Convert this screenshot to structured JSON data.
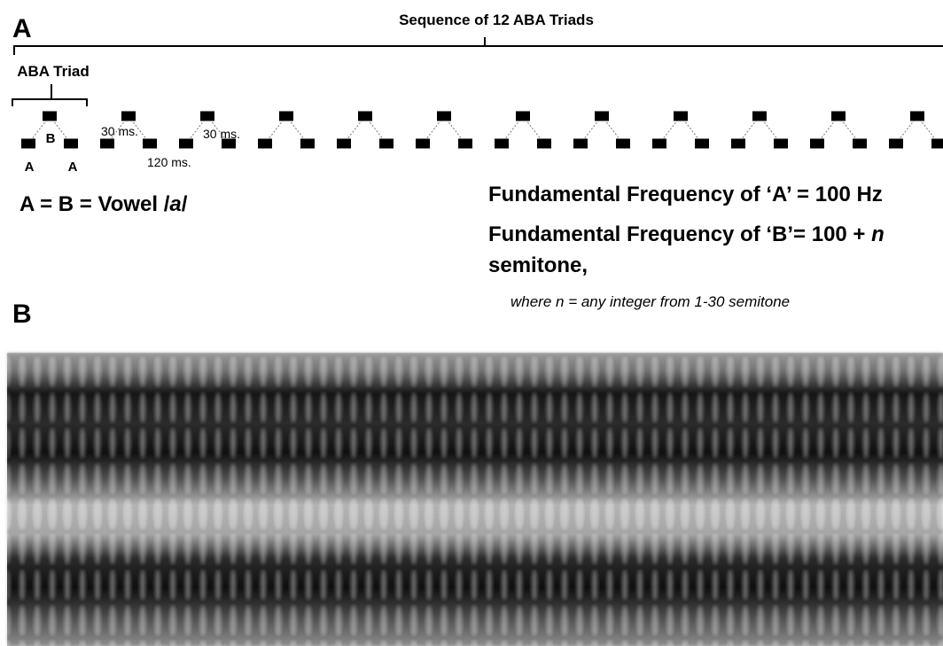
{
  "panel_a": {
    "label": "A",
    "sequence_label": "Sequence of 12 ABA Triads",
    "triad_label": "ABA Triad",
    "note_b": "B",
    "note_a1": "A",
    "note_a2": "A",
    "gap_label_1": "30 ms.",
    "gap_label_2": "30 ms.",
    "interval_label": "120 ms.",
    "equation": [
      "A = B =  Vowel /",
      "a",
      "/"
    ],
    "freq_a": "Fundamental Frequency of ‘A’ = 100 Hz",
    "freq_b": [
      "Fundamental Frequency of ‘B’= 100 + ",
      "n"
    ],
    "freq_b_cont": "semitone,",
    "note": "where n = any integer from 1-30 semitone"
  },
  "panel_b": {
    "label": "B"
  }
}
